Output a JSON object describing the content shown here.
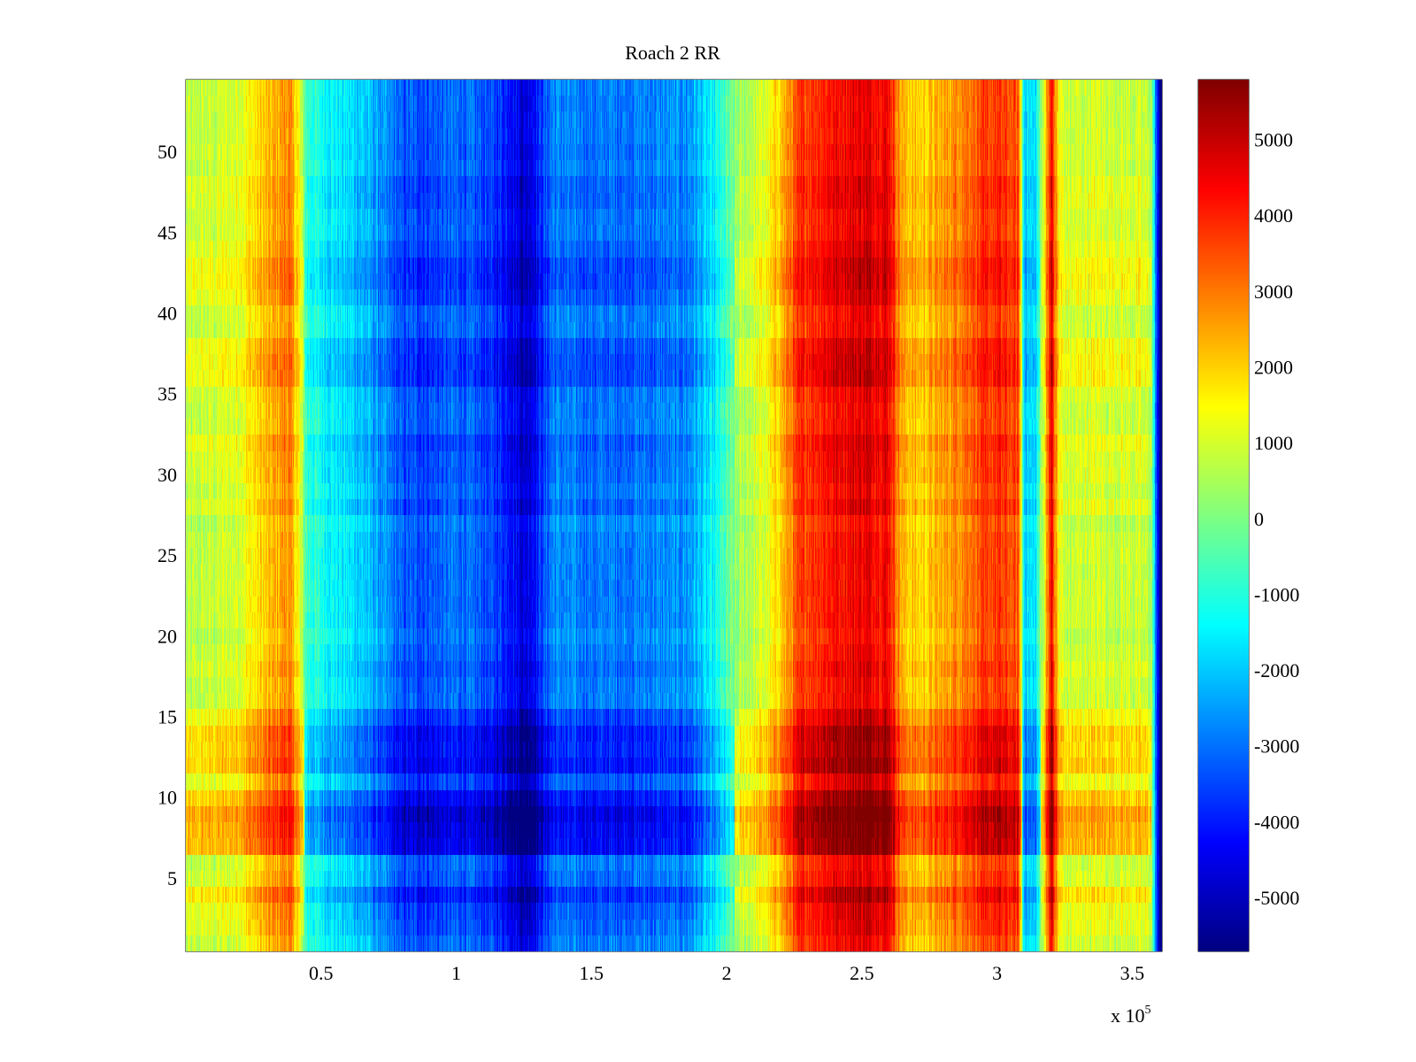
{
  "chart_data": {
    "type": "heatmap",
    "title": "Roach 2 RR",
    "xlabel": "",
    "ylabel": "",
    "x_exponent_label": "x 10",
    "x_exponent": "5",
    "xlim": [
      0,
      3.61
    ],
    "ylim": [
      0.5,
      54.5
    ],
    "x_ticks": [
      0.5,
      1,
      1.5,
      2,
      2.5,
      3,
      3.5
    ],
    "x_tick_labels": [
      "0.5",
      "1",
      "1.5",
      "2",
      "2.5",
      "3",
      "3.5"
    ],
    "y_ticks": [
      5,
      10,
      15,
      20,
      25,
      30,
      35,
      40,
      45,
      50
    ],
    "y_tick_labels": [
      "5",
      "10",
      "15",
      "20",
      "25",
      "30",
      "35",
      "40",
      "45",
      "50"
    ],
    "rows": 54,
    "colormap": "jet",
    "clim": [
      -5700,
      5800
    ],
    "colorbar": {
      "ticks": [
        5000,
        4000,
        3000,
        2000,
        1000,
        0,
        -1000,
        -2000,
        -3000,
        -4000,
        -5000
      ],
      "tick_labels": [
        "5000",
        "4000",
        "3000",
        "2000",
        "1000",
        "0",
        "-1000",
        "-2000",
        "-3000",
        "-4000",
        "-5000"
      ]
    },
    "column_profile": {
      "x": [
        0,
        0.18,
        0.27,
        0.34,
        0.38,
        0.41,
        0.45,
        0.55,
        0.65,
        0.72,
        0.8,
        0.9,
        1.0,
        1.1,
        1.2,
        1.25,
        1.3,
        1.36,
        1.5,
        1.7,
        1.85,
        1.95,
        2.0,
        2.05,
        2.15,
        2.23,
        2.28,
        2.4,
        2.5,
        2.6,
        2.65,
        2.72,
        2.8,
        2.9,
        3.0,
        3.08,
        3.1,
        3.14,
        3.17,
        3.2,
        3.23,
        3.26,
        3.35,
        3.5,
        3.57,
        3.6
      ],
      "value": [
        600,
        1000,
        1800,
        2400,
        2800,
        1800,
        -800,
        -1400,
        -1900,
        -2500,
        -3300,
        -3300,
        -3000,
        -3300,
        -3900,
        -4700,
        -3900,
        -2700,
        -2900,
        -2800,
        -2600,
        -1500,
        -500,
        400,
        1100,
        2700,
        3700,
        4300,
        4600,
        4400,
        2200,
        1900,
        2400,
        3200,
        3700,
        3300,
        -1600,
        -1800,
        800,
        4500,
        1200,
        800,
        1000,
        900,
        700,
        -5500
      ]
    },
    "row_offsets": [
      0,
      300,
      400,
      900,
      200,
      0,
      1400,
      1500,
      1700,
      1200,
      400,
      1200,
      1000,
      1100,
      600,
      0,
      0,
      200,
      0,
      -200,
      0,
      0,
      0,
      0,
      0,
      0,
      -200,
      300,
      0,
      200,
      200,
      400,
      0,
      0,
      100,
      600,
      600,
      500,
      0,
      0,
      400,
      600,
      600,
      300,
      100,
      100,
      300,
      300,
      0,
      100,
      0,
      0,
      0,
      0
    ]
  }
}
